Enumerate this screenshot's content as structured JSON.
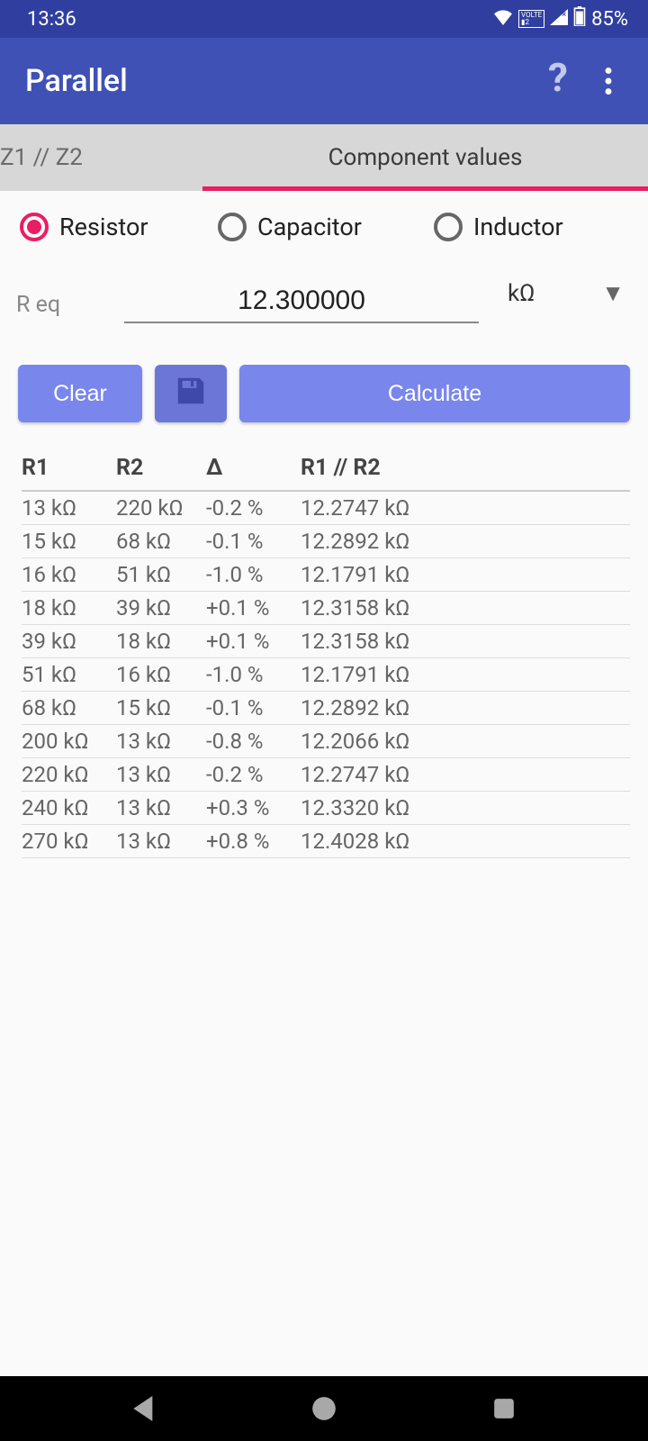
{
  "status": {
    "time": "13:36",
    "battery": "85%"
  },
  "appbar": {
    "title": "Parallel"
  },
  "tabs": {
    "left": "Z1 // Z2",
    "right": "Component values",
    "active": "right"
  },
  "radios": {
    "options": [
      {
        "label": "Resistor",
        "selected": true
      },
      {
        "label": "Capacitor",
        "selected": false
      },
      {
        "label": "Inductor",
        "selected": false
      }
    ]
  },
  "input": {
    "label": "R eq",
    "value": "12.300000",
    "unit": "kΩ"
  },
  "buttons": {
    "clear": "Clear",
    "calculate": "Calculate"
  },
  "table": {
    "headers": {
      "c1": "R1",
      "c2": "R2",
      "c3": "Δ",
      "c4": "R1 // R2"
    },
    "rows": [
      {
        "c1": "13 kΩ",
        "c2": "220 kΩ",
        "c3": "-0.2 %",
        "c4": "12.2747 kΩ"
      },
      {
        "c1": "15 kΩ",
        "c2": "68 kΩ",
        "c3": "-0.1 %",
        "c4": "12.2892 kΩ"
      },
      {
        "c1": "16 kΩ",
        "c2": "51 kΩ",
        "c3": "-1.0 %",
        "c4": "12.1791 kΩ"
      },
      {
        "c1": "18 kΩ",
        "c2": "39 kΩ",
        "c3": "+0.1 %",
        "c4": "12.3158 kΩ"
      },
      {
        "c1": "39 kΩ",
        "c2": "18 kΩ",
        "c3": "+0.1 %",
        "c4": "12.3158 kΩ"
      },
      {
        "c1": "51 kΩ",
        "c2": "16 kΩ",
        "c3": "-1.0 %",
        "c4": "12.1791 kΩ"
      },
      {
        "c1": "68 kΩ",
        "c2": "15 kΩ",
        "c3": "-0.1 %",
        "c4": "12.2892 kΩ"
      },
      {
        "c1": "200 kΩ",
        "c2": "13 kΩ",
        "c3": "-0.8 %",
        "c4": "12.2066 kΩ"
      },
      {
        "c1": "220 kΩ",
        "c2": "13 kΩ",
        "c3": "-0.2 %",
        "c4": "12.2747 kΩ"
      },
      {
        "c1": "240 kΩ",
        "c2": "13 kΩ",
        "c3": "+0.3 %",
        "c4": "12.3320 kΩ"
      },
      {
        "c1": "270 kΩ",
        "c2": "13 kΩ",
        "c3": "+0.8 %",
        "c4": "12.4028 kΩ"
      }
    ]
  },
  "colors": {
    "primary": "#3f51b5",
    "primaryDark": "#303f9f",
    "accent": "#e91e63",
    "buttonBg": "#7986ec",
    "tabBg": "#d7d7d7"
  }
}
